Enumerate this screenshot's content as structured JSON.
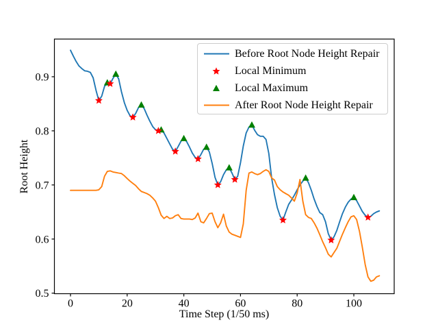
{
  "chart_data": {
    "type": "line",
    "title": "",
    "xlabel": "Time Step (1/50 ms)",
    "ylabel": "Root Height",
    "xlim": [
      -5.68,
      114.25
    ],
    "ylim": [
      0.499,
      0.9696
    ],
    "xticks": [
      0,
      20,
      40,
      60,
      80,
      100
    ],
    "yticks": [
      0.5,
      0.6,
      0.7,
      0.8,
      0.9
    ],
    "grid": false,
    "legend_position": "upper right",
    "series": [
      {
        "id": "before_repair",
        "name": "Before Root Node Height Repair",
        "color": "#1f77b4",
        "x0": 0,
        "dx": 1,
        "y": [
          0.949,
          0.938,
          0.928,
          0.92,
          0.915,
          0.911,
          0.91,
          0.908,
          0.898,
          0.875,
          0.856,
          0.864,
          0.882,
          0.889,
          0.887,
          0.897,
          0.905,
          0.896,
          0.872,
          0.852,
          0.838,
          0.828,
          0.825,
          0.832,
          0.843,
          0.848,
          0.841,
          0.829,
          0.818,
          0.808,
          0.802,
          0.8,
          0.802,
          0.796,
          0.786,
          0.776,
          0.766,
          0.762,
          0.771,
          0.781,
          0.786,
          0.78,
          0.77,
          0.759,
          0.751,
          0.748,
          0.756,
          0.766,
          0.77,
          0.761,
          0.74,
          0.714,
          0.7,
          0.706,
          0.719,
          0.728,
          0.732,
          0.722,
          0.71,
          0.716,
          0.741,
          0.772,
          0.796,
          0.807,
          0.811,
          0.801,
          0.793,
          0.79,
          0.79,
          0.784,
          0.758,
          0.713,
          0.682,
          0.658,
          0.642,
          0.635,
          0.65,
          0.664,
          0.672,
          0.681,
          0.691,
          0.7,
          0.707,
          0.713,
          0.704,
          0.69,
          0.674,
          0.66,
          0.649,
          0.645,
          0.632,
          0.61,
          0.598,
          0.604,
          0.616,
          0.632,
          0.647,
          0.659,
          0.668,
          0.674,
          0.677,
          0.671,
          0.661,
          0.651,
          0.644,
          0.64,
          0.642,
          0.647,
          0.65,
          0.652
        ]
      },
      {
        "id": "after_repair",
        "name": "After Root Node Height Repair",
        "color": "#ff7f0e",
        "x0": 0,
        "dx": 1,
        "y": [
          0.69,
          0.69,
          0.69,
          0.69,
          0.69,
          0.69,
          0.69,
          0.69,
          0.69,
          0.69,
          0.691,
          0.697,
          0.716,
          0.725,
          0.726,
          0.724,
          0.723,
          0.722,
          0.721,
          0.717,
          0.712,
          0.707,
          0.703,
          0.699,
          0.693,
          0.688,
          0.686,
          0.684,
          0.681,
          0.676,
          0.67,
          0.658,
          0.644,
          0.638,
          0.642,
          0.638,
          0.639,
          0.643,
          0.645,
          0.638,
          0.637,
          0.637,
          0.637,
          0.636,
          0.639,
          0.648,
          0.632,
          0.63,
          0.638,
          0.647,
          0.648,
          0.632,
          0.621,
          0.63,
          0.646,
          0.624,
          0.613,
          0.609,
          0.607,
          0.605,
          0.603,
          0.628,
          0.69,
          0.722,
          0.724,
          0.721,
          0.719,
          0.721,
          0.725,
          0.728,
          0.725,
          0.713,
          0.709,
          0.697,
          0.691,
          0.687,
          0.684,
          0.681,
          0.676,
          0.67,
          0.685,
          0.71,
          0.67,
          0.645,
          0.64,
          0.638,
          0.63,
          0.62,
          0.608,
          0.595,
          0.584,
          0.572,
          0.567,
          0.575,
          0.583,
          0.596,
          0.609,
          0.621,
          0.632,
          0.641,
          0.643,
          0.636,
          0.614,
          0.585,
          0.553,
          0.53,
          0.522,
          0.524,
          0.53,
          0.532
        ]
      }
    ],
    "markers": [
      {
        "id": "local_maximum",
        "name": "Local Maximum",
        "shape": "triangle-up",
        "color": "#008000",
        "points": [
          [
            13,
            0.889
          ],
          [
            16,
            0.905
          ],
          [
            25,
            0.848
          ],
          [
            32,
            0.802
          ],
          [
            40,
            0.786
          ],
          [
            48,
            0.77
          ],
          [
            56,
            0.732
          ],
          [
            64,
            0.811
          ],
          [
            83,
            0.713
          ],
          [
            100,
            0.677
          ]
        ]
      },
      {
        "id": "local_minimum",
        "name": "Local Minimum",
        "shape": "star",
        "color": "#ff0000",
        "points": [
          [
            10,
            0.856
          ],
          [
            14,
            0.887
          ],
          [
            22,
            0.825
          ],
          [
            31,
            0.8
          ],
          [
            37,
            0.762
          ],
          [
            45,
            0.748
          ],
          [
            52,
            0.7
          ],
          [
            58,
            0.71
          ],
          [
            75,
            0.635
          ],
          [
            92,
            0.598
          ],
          [
            105,
            0.64
          ]
        ]
      }
    ],
    "legend": {
      "entries": [
        {
          "label": "Before Root Node Height Repair",
          "sample": "line",
          "color": "#1f77b4"
        },
        {
          "label": "Local Minimum",
          "sample": "star",
          "color": "#ff0000"
        },
        {
          "label": "Local Maximum",
          "sample": "triangle",
          "color": "#008000"
        },
        {
          "label": "After Root Node Height Repair",
          "sample": "line",
          "color": "#ff7f0e"
        }
      ]
    }
  }
}
